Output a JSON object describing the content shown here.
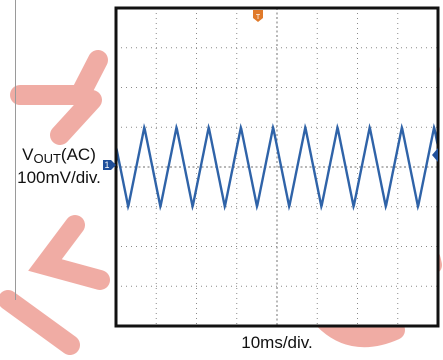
{
  "chart_data": {
    "type": "line",
    "title": "",
    "ylabel": {
      "prefix": "V",
      "subscript": "OUT",
      "suffix": "(AC)",
      "scale": "100mV/div."
    },
    "xlabel": "10ms/div.",
    "grid": true,
    "divisions": {
      "x": 8,
      "y": 8
    },
    "channel_marker": "1",
    "trigger_marker": "T",
    "series": [
      {
        "color": "#2f63a8",
        "waveform": "triangle",
        "frequency_hz": 125,
        "amplitude_mv": 100,
        "offset_mv": 0,
        "period_ms": 8,
        "x_range_ms": [
          0,
          80
        ],
        "y_range_div": [
          -4,
          4
        ]
      }
    ]
  },
  "colors": {
    "frame": "#111111",
    "grid": "#8a8a8a",
    "trace": "#2f63a8",
    "marker_channel": "#1f4f9a",
    "marker_trigger": "#e07a2a",
    "watermark": "#f0a8a0"
  }
}
